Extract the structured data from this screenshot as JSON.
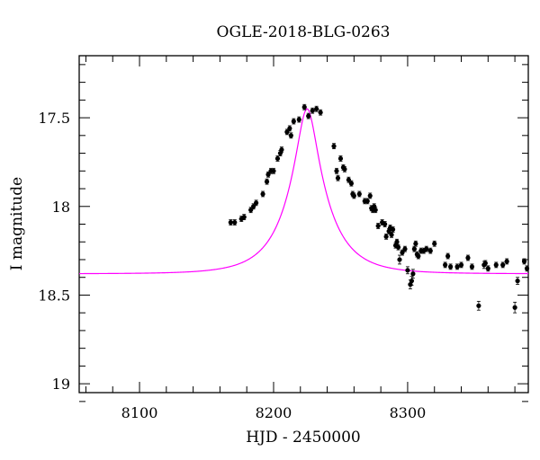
{
  "chart_data": {
    "type": "scatter",
    "title": "OGLE-2018-BLG-0263",
    "xlabel": "HJD - 2450000",
    "ylabel": "I magnitude",
    "xlim": [
      8055,
      8390
    ],
    "ylim": [
      19.05,
      17.15
    ],
    "y_inverted": true,
    "x_ticks": [
      8100,
      8200,
      8300
    ],
    "y_ticks": [
      17.5,
      18,
      18.5,
      19
    ],
    "y_tick_labels": [
      "17.5",
      "18",
      "18.5",
      "19"
    ],
    "grid": false,
    "model_color": "#ff00ff",
    "point_color": "#000000",
    "model": {
      "t0": 8225,
      "u0": 0.23,
      "tE": 30,
      "baseline": 18.38,
      "x_range": [
        8055,
        8390
      ]
    },
    "series": [
      {
        "points": [
          [
            8168,
            18.09,
            0.015
          ],
          [
            8171,
            18.09,
            0.015
          ],
          [
            8176,
            18.07,
            0.015
          ],
          [
            8178,
            18.06,
            0.015
          ],
          [
            8183,
            18.02,
            0.015
          ],
          [
            8185,
            18.0,
            0.015
          ],
          [
            8187,
            17.98,
            0.015
          ],
          [
            8192,
            17.93,
            0.015
          ],
          [
            8195,
            17.86,
            0.015
          ],
          [
            8196,
            17.82,
            0.015
          ],
          [
            8198,
            17.8,
            0.015
          ],
          [
            8200,
            17.8,
            0.015
          ],
          [
            8203,
            17.73,
            0.015
          ],
          [
            8205,
            17.7,
            0.015
          ],
          [
            8206,
            17.68,
            0.015
          ],
          [
            8210,
            17.58,
            0.015
          ],
          [
            8212,
            17.56,
            0.015
          ],
          [
            8213,
            17.6,
            0.015
          ],
          [
            8215,
            17.52,
            0.015
          ],
          [
            8219,
            17.51,
            0.015
          ],
          [
            8223,
            17.44,
            0.015
          ],
          [
            8226,
            17.49,
            0.015
          ],
          [
            8229,
            17.46,
            0.015
          ],
          [
            8232,
            17.45,
            0.015
          ],
          [
            8235,
            17.47,
            0.015
          ],
          [
            8245,
            17.66,
            0.015
          ],
          [
            8247,
            17.8,
            0.015
          ],
          [
            8248,
            17.84,
            0.015
          ],
          [
            8250,
            17.73,
            0.015
          ],
          [
            8252,
            17.78,
            0.015
          ],
          [
            8253,
            17.79,
            0.015
          ],
          [
            8256,
            17.85,
            0.015
          ],
          [
            8258,
            17.87,
            0.015
          ],
          [
            8259,
            17.93,
            0.015
          ],
          [
            8260,
            17.94,
            0.015
          ],
          [
            8264,
            17.93,
            0.015
          ],
          [
            8268,
            17.97,
            0.015
          ],
          [
            8270,
            17.97,
            0.015
          ],
          [
            8272,
            17.94,
            0.015
          ],
          [
            8273,
            18.01,
            0.015
          ],
          [
            8274,
            18.02,
            0.015
          ],
          [
            8275,
            18.0,
            0.015
          ],
          [
            8276,
            18.02,
            0.015
          ],
          [
            8278,
            18.11,
            0.015
          ],
          [
            8281,
            18.09,
            0.015
          ],
          [
            8283,
            18.1,
            0.015
          ],
          [
            8284,
            18.17,
            0.015
          ],
          [
            8286,
            18.14,
            0.015
          ],
          [
            8287,
            18.12,
            0.015
          ],
          [
            8288,
            18.16,
            0.015
          ],
          [
            8289,
            18.13,
            0.015
          ],
          [
            8291,
            18.22,
            0.015
          ],
          [
            8292,
            18.2,
            0.015
          ],
          [
            8293,
            18.23,
            0.015
          ],
          [
            8294,
            18.3,
            0.025
          ],
          [
            8296,
            18.26,
            0.015
          ],
          [
            8298,
            18.24,
            0.015
          ],
          [
            8300,
            18.36,
            0.02
          ],
          [
            8302,
            18.44,
            0.025
          ],
          [
            8303,
            18.42,
            0.025
          ],
          [
            8304,
            18.38,
            0.025
          ],
          [
            8305,
            18.24,
            0.015
          ],
          [
            8306,
            18.21,
            0.015
          ],
          [
            8307,
            18.27,
            0.015
          ],
          [
            8308,
            18.28,
            0.015
          ],
          [
            8310,
            18.25,
            0.015
          ],
          [
            8312,
            18.25,
            0.015
          ],
          [
            8314,
            18.24,
            0.015
          ],
          [
            8317,
            18.25,
            0.015
          ],
          [
            8320,
            18.21,
            0.015
          ],
          [
            8328,
            18.33,
            0.015
          ],
          [
            8330,
            18.28,
            0.015
          ],
          [
            8332,
            18.34,
            0.015
          ],
          [
            8337,
            18.34,
            0.015
          ],
          [
            8340,
            18.33,
            0.015
          ],
          [
            8345,
            18.29,
            0.015
          ],
          [
            8348,
            18.34,
            0.015
          ],
          [
            8353,
            18.56,
            0.025
          ],
          [
            8357,
            18.33,
            0.02
          ],
          [
            8358,
            18.32,
            0.015
          ],
          [
            8360,
            18.35,
            0.015
          ],
          [
            8366,
            18.33,
            0.015
          ],
          [
            8371,
            18.33,
            0.015
          ],
          [
            8374,
            18.31,
            0.015
          ],
          [
            8380,
            18.57,
            0.03
          ],
          [
            8382,
            18.42,
            0.02
          ],
          [
            8387,
            18.31,
            0.015
          ],
          [
            8389,
            18.35,
            0.015
          ]
        ]
      }
    ]
  }
}
